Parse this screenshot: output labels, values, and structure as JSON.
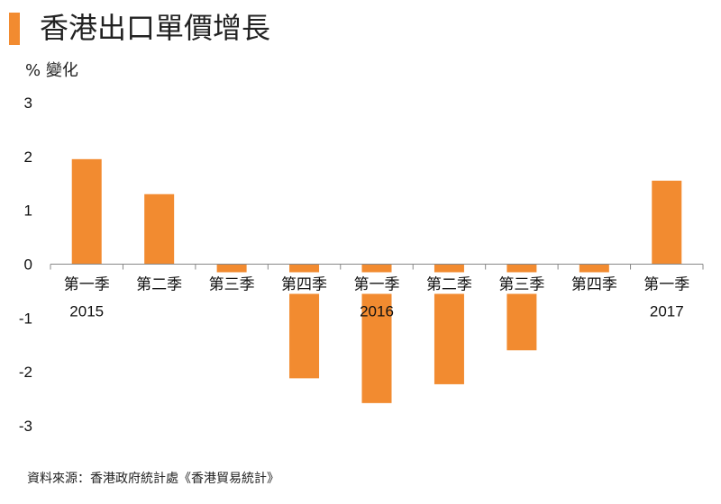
{
  "title": "香港出口單價增長",
  "source": "資料來源：香港政府統計處《香港貿易統計》",
  "chart_data": {
    "type": "bar",
    "title": "香港出口單價增長",
    "ylabel": "% 變化",
    "ylim": [
      -3,
      3
    ],
    "yticks": [
      3,
      2,
      1,
      0,
      -1,
      -2,
      -3
    ],
    "grid": false,
    "legend": "none",
    "categories": [
      "第一季",
      "第二季",
      "第三季",
      "第四季",
      "第一季",
      "第二季",
      "第三季",
      "第四季",
      "第一季"
    ],
    "years": [
      {
        "label": "2015",
        "category_index": 0
      },
      {
        "label": "2016",
        "category_index": 4
      },
      {
        "label": "2017",
        "category_index": 8
      }
    ],
    "values": [
      1.95,
      1.3,
      -0.45,
      -2.12,
      -2.58,
      -2.23,
      -1.6,
      -0.5,
      1.55
    ],
    "bar_color": "#f28b30"
  }
}
